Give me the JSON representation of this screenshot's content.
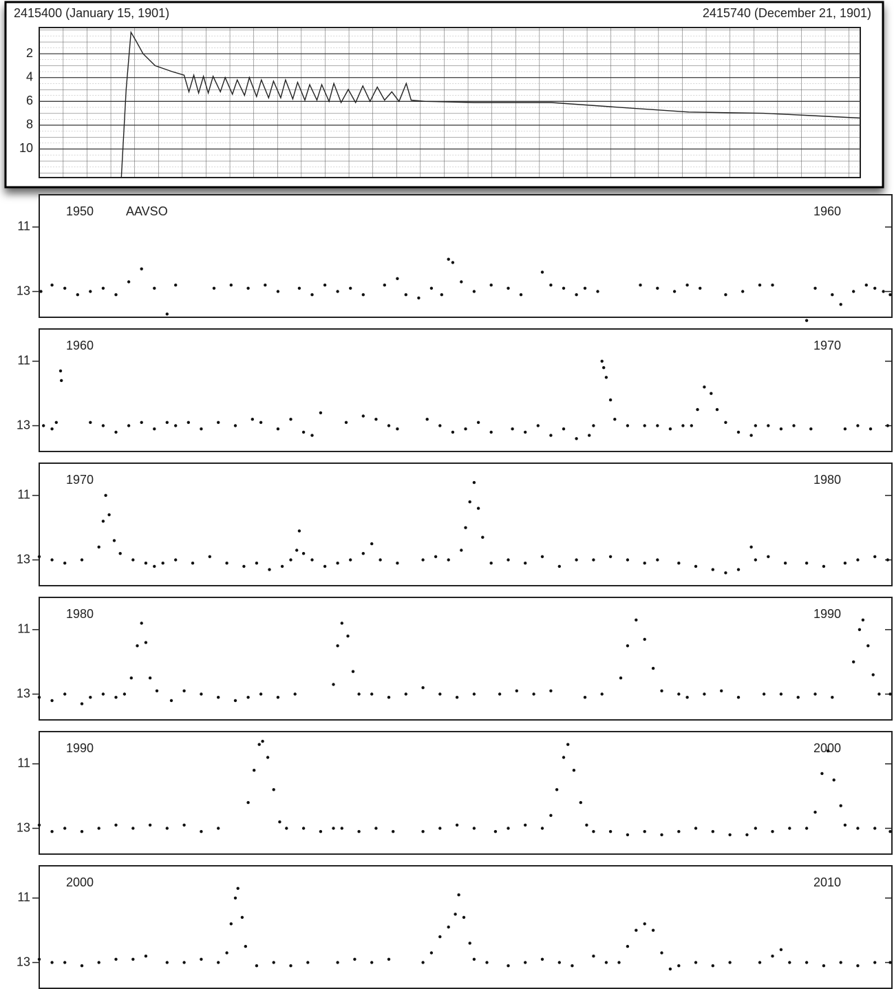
{
  "chart_data": [
    {
      "type": "line",
      "color": "#222",
      "y_inverted": true,
      "grid": true,
      "xlim": [
        2415400,
        2415740
      ],
      "xticks": [
        {
          "value": 2415400,
          "label": "2415400 (January 15, 1901)"
        },
        {
          "value": 2415740,
          "label": "2415740 (December 21, 1901)"
        }
      ],
      "ylim": [
        -0.2,
        12.4
      ],
      "yticks": [
        2,
        4,
        6,
        8,
        10
      ],
      "x": [
        2415434,
        2415436,
        2415438,
        2415440,
        2415443,
        2415448,
        2415455,
        2415460,
        2415462,
        2415464,
        2415466,
        2415468,
        2415470,
        2415472,
        2415475,
        2415477,
        2415480,
        2415482,
        2415485,
        2415487,
        2415490,
        2415492,
        2415495,
        2415497,
        2415500,
        2415502,
        2415505,
        2415507,
        2415510,
        2415512,
        2415515,
        2415517,
        2415520,
        2415522,
        2415525,
        2415528,
        2415531,
        2415534,
        2415537,
        2415540,
        2415543,
        2415546,
        2415549,
        2415552,
        2415554,
        2415560,
        2415580,
        2415612,
        2415640,
        2415669,
        2415700,
        2415720,
        2415740
      ],
      "values": [
        12.4,
        5,
        0.2,
        0.9,
        2.0,
        3.0,
        3.5,
        3.8,
        5.2,
        3.8,
        5.3,
        3.9,
        5.3,
        3.9,
        5.2,
        4.0,
        5.4,
        4.2,
        5.5,
        4.0,
        5.6,
        4.2,
        5.7,
        4.3,
        5.7,
        4.2,
        5.8,
        4.4,
        5.9,
        4.6,
        5.9,
        4.6,
        6.0,
        4.5,
        6.1,
        5.0,
        6.1,
        4.7,
        6.0,
        4.8,
        5.9,
        5.2,
        6.0,
        4.5,
        5.9,
        6.0,
        6.1,
        6.1,
        6.5,
        6.9,
        7.0,
        7.2,
        7.4
      ]
    },
    {
      "type": "scatter",
      "color": "#111",
      "y_inverted": true,
      "label_left": "1950",
      "label_right": "1960",
      "annotation": "AAVSO",
      "xlim": [
        1950,
        1960
      ],
      "ylim": [
        10,
        13.8
      ],
      "yticks": [
        11,
        13
      ],
      "x": [
        1950.02,
        1950.15,
        1950.3,
        1950.45,
        1950.6,
        1950.75,
        1950.9,
        1951.05,
        1951.2,
        1951.35,
        1951.5,
        1951.6,
        1952.05,
        1952.25,
        1952.45,
        1952.65,
        1952.8,
        1953.05,
        1953.2,
        1953.35,
        1953.5,
        1953.65,
        1953.8,
        1954.05,
        1954.2,
        1954.3,
        1954.45,
        1954.6,
        1954.72,
        1954.8,
        1954.85,
        1954.95,
        1955.1,
        1955.3,
        1955.5,
        1955.65,
        1955.9,
        1956.0,
        1956.15,
        1956.3,
        1956.4,
        1956.55,
        1957.05,
        1957.25,
        1957.45,
        1957.6,
        1957.75,
        1958.05,
        1958.25,
        1958.45,
        1958.6,
        1959.0,
        1959.1,
        1959.3,
        1959.4,
        1959.55,
        1959.7,
        1959.8,
        1959.9,
        1959.98
      ],
      "values": [
        13.0,
        12.8,
        12.9,
        13.1,
        13.0,
        12.9,
        13.1,
        12.7,
        12.3,
        12.9,
        13.7,
        12.8,
        12.9,
        12.8,
        12.9,
        12.8,
        13.0,
        12.9,
        13.1,
        12.8,
        13.0,
        12.9,
        13.1,
        12.8,
        12.6,
        13.1,
        13.2,
        12.9,
        13.1,
        12.0,
        12.1,
        12.7,
        13.0,
        12.8,
        12.9,
        13.1,
        12.4,
        12.8,
        12.9,
        13.1,
        12.9,
        13.0,
        12.8,
        12.9,
        13.0,
        12.8,
        12.9,
        13.1,
        13.0,
        12.8,
        12.8,
        13.9,
        12.9,
        13.1,
        13.4,
        13.0,
        12.8,
        12.9,
        13.0,
        13.1
      ]
    },
    {
      "type": "scatter",
      "color": "#111",
      "y_inverted": true,
      "label_left": "1960",
      "label_right": "1970",
      "xlim": [
        1960,
        1970
      ],
      "ylim": [
        10,
        13.8
      ],
      "yticks": [
        11,
        13
      ],
      "x": [
        1960.05,
        1960.15,
        1960.2,
        1960.25,
        1960.26,
        1960.6,
        1960.75,
        1960.9,
        1961.05,
        1961.2,
        1961.35,
        1961.5,
        1961.6,
        1961.75,
        1961.9,
        1962.1,
        1962.3,
        1962.5,
        1962.6,
        1962.8,
        1962.95,
        1963.1,
        1963.2,
        1963.3,
        1963.6,
        1963.8,
        1963.95,
        1964.1,
        1964.2,
        1964.55,
        1964.7,
        1964.85,
        1965.0,
        1965.15,
        1965.3,
        1965.55,
        1965.7,
        1965.85,
        1966.0,
        1966.15,
        1966.3,
        1966.45,
        1966.5,
        1966.6,
        1966.62,
        1966.65,
        1966.7,
        1966.75,
        1966.9,
        1967.1,
        1967.25,
        1967.4,
        1967.55,
        1967.65,
        1967.72,
        1967.8,
        1967.88,
        1967.95,
        1968.05,
        1968.2,
        1968.35,
        1968.4,
        1968.55,
        1968.7,
        1968.85,
        1969.05,
        1969.45,
        1969.6,
        1969.75,
        1969.95
      ],
      "values": [
        13.0,
        13.1,
        12.9,
        11.3,
        11.6,
        12.9,
        13.0,
        13.2,
        13.0,
        12.9,
        13.1,
        12.9,
        13.0,
        12.9,
        13.1,
        12.9,
        13.0,
        12.8,
        12.9,
        13.1,
        12.8,
        13.2,
        13.3,
        12.6,
        12.9,
        12.7,
        12.8,
        13.0,
        13.1,
        12.8,
        13.0,
        13.2,
        13.1,
        12.9,
        13.2,
        13.1,
        13.2,
        13.0,
        13.3,
        13.1,
        13.4,
        13.3,
        13.0,
        11.0,
        11.2,
        11.5,
        12.2,
        12.8,
        13.0,
        13.0,
        13.0,
        13.1,
        13.0,
        13.0,
        12.5,
        11.8,
        12.0,
        12.5,
        12.9,
        13.2,
        13.3,
        13.0,
        13.0,
        13.1,
        13.0,
        13.1,
        13.1,
        13.0,
        13.1,
        13.0
      ]
    },
    {
      "type": "scatter",
      "color": "#111",
      "y_inverted": true,
      "label_left": "1970",
      "label_right": "1980",
      "xlim": [
        1970,
        1980
      ],
      "ylim": [
        10,
        13.8
      ],
      "yticks": [
        11,
        13
      ],
      "x": [
        1970.0,
        1970.15,
        1970.3,
        1970.5,
        1970.7,
        1970.75,
        1970.78,
        1970.82,
        1970.88,
        1970.95,
        1971.1,
        1971.25,
        1971.35,
        1971.45,
        1971.6,
        1971.8,
        1972.0,
        1972.2,
        1972.4,
        1972.55,
        1972.7,
        1972.85,
        1972.95,
        1973.02,
        1973.05,
        1973.1,
        1973.2,
        1973.35,
        1973.5,
        1973.65,
        1973.8,
        1973.9,
        1974.0,
        1974.2,
        1974.5,
        1974.65,
        1974.8,
        1974.95,
        1975.0,
        1975.05,
        1975.1,
        1975.15,
        1975.2,
        1975.3,
        1975.5,
        1975.7,
        1975.9,
        1976.1,
        1976.3,
        1976.5,
        1976.7,
        1976.9,
        1977.1,
        1977.25,
        1977.5,
        1977.7,
        1977.9,
        1978.05,
        1978.2,
        1978.35,
        1978.4,
        1978.55,
        1978.75,
        1979.0,
        1979.2,
        1979.45,
        1979.6,
        1979.8,
        1979.95
      ],
      "values": [
        12.9,
        13.0,
        13.1,
        13.0,
        12.6,
        11.8,
        11.0,
        11.6,
        12.4,
        12.8,
        13.0,
        13.1,
        13.2,
        13.1,
        13.0,
        13.1,
        12.9,
        13.1,
        13.2,
        13.1,
        13.3,
        13.2,
        13.0,
        12.7,
        12.1,
        12.8,
        13.0,
        13.2,
        13.1,
        13.0,
        12.8,
        12.5,
        13.0,
        13.1,
        13.0,
        12.9,
        13.0,
        12.7,
        12.0,
        11.2,
        10.6,
        11.4,
        12.3,
        13.1,
        13.0,
        13.1,
        12.9,
        13.2,
        13.0,
        13.0,
        12.9,
        13.0,
        13.1,
        13.0,
        13.1,
        13.2,
        13.3,
        13.4,
        13.3,
        12.6,
        13.0,
        12.9,
        13.1,
        13.1,
        13.2,
        13.1,
        13.0,
        12.9,
        13.0
      ]
    },
    {
      "type": "scatter",
      "color": "#111",
      "y_inverted": true,
      "label_left": "1980",
      "label_right": "1990",
      "xlim": [
        1980,
        1990
      ],
      "ylim": [
        10,
        13.8
      ],
      "yticks": [
        11,
        13
      ],
      "x": [
        1980.0,
        1980.15,
        1980.3,
        1980.5,
        1980.6,
        1980.75,
        1980.9,
        1981.0,
        1981.08,
        1981.15,
        1981.2,
        1981.25,
        1981.3,
        1981.38,
        1981.55,
        1981.7,
        1981.9,
        1982.1,
        1982.3,
        1982.45,
        1982.6,
        1982.8,
        1983.0,
        1983.45,
        1983.5,
        1983.55,
        1983.62,
        1983.68,
        1983.75,
        1983.9,
        1984.1,
        1984.3,
        1984.5,
        1984.7,
        1984.9,
        1985.1,
        1985.4,
        1985.6,
        1985.8,
        1986.0,
        1986.4,
        1986.6,
        1986.82,
        1986.9,
        1987.0,
        1987.1,
        1987.2,
        1987.3,
        1987.5,
        1987.6,
        1987.8,
        1988.0,
        1988.2,
        1988.5,
        1988.7,
        1988.9,
        1989.1,
        1989.3,
        1989.55,
        1989.62,
        1989.66,
        1989.72,
        1989.78,
        1989.85,
        1989.98
      ],
      "values": [
        13.1,
        13.2,
        13.0,
        13.3,
        13.1,
        13.0,
        13.1,
        13.0,
        12.5,
        11.5,
        10.8,
        11.4,
        12.5,
        12.9,
        13.2,
        12.9,
        13.0,
        13.1,
        13.2,
        13.1,
        13.0,
        13.1,
        13.0,
        12.7,
        11.5,
        10.8,
        11.2,
        12.3,
        13.0,
        13.0,
        13.1,
        13.0,
        12.8,
        13.0,
        13.1,
        13.0,
        13.0,
        12.9,
        13.0,
        12.9,
        13.1,
        13.0,
        12.5,
        11.5,
        10.7,
        11.3,
        12.2,
        12.9,
        13.0,
        13.1,
        13.0,
        12.9,
        13.1,
        13.0,
        13.0,
        13.1,
        13.0,
        13.1,
        12.0,
        11.0,
        10.7,
        11.5,
        12.4,
        13.0,
        13.0
      ]
    },
    {
      "type": "scatter",
      "color": "#111",
      "y_inverted": true,
      "label_left": "1990",
      "label_right": "2000",
      "xlim": [
        1990,
        2000
      ],
      "ylim": [
        10,
        13.8
      ],
      "yticks": [
        11,
        13
      ],
      "x": [
        1990.0,
        1990.15,
        1990.3,
        1990.5,
        1990.7,
        1990.9,
        1991.1,
        1991.3,
        1991.5,
        1991.7,
        1991.9,
        1992.1,
        1992.45,
        1992.52,
        1992.58,
        1992.62,
        1992.68,
        1992.75,
        1992.82,
        1992.9,
        1993.1,
        1993.3,
        1993.45,
        1993.55,
        1993.75,
        1993.95,
        1994.15,
        1994.5,
        1994.7,
        1994.9,
        1995.1,
        1995.35,
        1995.5,
        1995.7,
        1995.9,
        1996.0,
        1996.07,
        1996.15,
        1996.2,
        1996.27,
        1996.35,
        1996.42,
        1996.5,
        1996.7,
        1996.9,
        1997.1,
        1997.3,
        1997.5,
        1997.7,
        1997.9,
        1998.1,
        1998.3,
        1998.4,
        1998.6,
        1998.8,
        1999.0,
        1999.1,
        1999.18,
        1999.25,
        1999.32,
        1999.4,
        1999.45,
        1999.6,
        1999.8,
        1999.98
      ],
      "values": [
        12.9,
        13.1,
        13.0,
        13.1,
        13.0,
        12.9,
        13.0,
        12.9,
        13.0,
        12.9,
        13.1,
        13.0,
        12.2,
        11.2,
        10.4,
        10.3,
        10.8,
        11.8,
        12.8,
        13.0,
        13.0,
        13.1,
        13.0,
        13.0,
        13.1,
        13.0,
        13.1,
        13.1,
        13.0,
        12.9,
        13.0,
        13.1,
        13.0,
        12.9,
        13.0,
        12.6,
        11.8,
        10.8,
        10.4,
        11.2,
        12.2,
        12.9,
        13.1,
        13.1,
        13.2,
        13.1,
        13.2,
        13.1,
        13.0,
        13.1,
        13.2,
        13.2,
        13.0,
        13.1,
        13.0,
        13.0,
        12.5,
        11.3,
        10.6,
        11.5,
        12.3,
        12.9,
        13.0,
        13.0,
        13.1
      ]
    },
    {
      "type": "scatter",
      "color": "#111",
      "y_inverted": true,
      "label_left": "2000",
      "label_right": "2010",
      "xlim": [
        2000,
        2010
      ],
      "ylim": [
        10,
        13.8
      ],
      "yticks": [
        11,
        13
      ],
      "x": [
        2000.0,
        2000.15,
        2000.3,
        2000.5,
        2000.7,
        2000.9,
        2001.1,
        2001.25,
        2001.5,
        2001.7,
        2001.9,
        2002.1,
        2002.2,
        2002.25,
        2002.3,
        2002.33,
        2002.38,
        2002.42,
        2002.55,
        2002.75,
        2002.95,
        2003.15,
        2003.5,
        2003.7,
        2003.9,
        2004.1,
        2004.5,
        2004.6,
        2004.7,
        2004.8,
        2004.88,
        2004.92,
        2004.98,
        2005.05,
        2005.1,
        2005.25,
        2005.5,
        2005.7,
        2005.9,
        2006.1,
        2006.25,
        2006.5,
        2006.65,
        2006.8,
        2006.9,
        2007.0,
        2007.1,
        2007.2,
        2007.3,
        2007.4,
        2007.5,
        2007.7,
        2007.9,
        2008.1,
        2008.45,
        2008.6,
        2008.7,
        2008.8,
        2009.0,
        2009.2,
        2009.4,
        2009.6,
        2009.8,
        2009.98
      ],
      "values": [
        12.9,
        13.0,
        13.0,
        13.1,
        13.0,
        12.9,
        12.9,
        12.8,
        13.0,
        13.0,
        12.9,
        13.0,
        12.7,
        11.8,
        11.0,
        10.7,
        11.6,
        12.5,
        13.1,
        13.0,
        13.1,
        13.0,
        13.0,
        12.9,
        13.0,
        12.9,
        13.0,
        12.7,
        12.2,
        11.9,
        11.5,
        10.9,
        11.6,
        12.4,
        12.9,
        13.0,
        13.1,
        13.0,
        12.9,
        13.0,
        13.1,
        12.8,
        13.0,
        13.0,
        12.5,
        12.0,
        11.8,
        12.0,
        12.7,
        13.2,
        13.1,
        13.0,
        13.1,
        13.0,
        13.0,
        12.8,
        12.6,
        13.0,
        13.0,
        13.1,
        13.0,
        13.1,
        13.0,
        13.0
      ]
    }
  ]
}
